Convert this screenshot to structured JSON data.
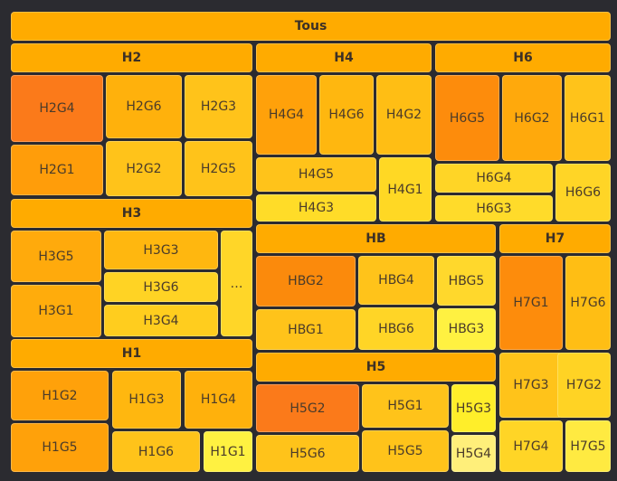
{
  "chart_data": {
    "type": "treemap",
    "root": {
      "name": "Tous",
      "children": [
        {
          "name": "H2",
          "children": [
            {
              "name": "H2G4",
              "color": "#fb7a1a"
            },
            {
              "name": "H2G6",
              "color": "#ffb10c"
            },
            {
              "name": "H2G3",
              "color": "#ffc31a"
            },
            {
              "name": "H2G1",
              "color": "#ff9d0a"
            },
            {
              "name": "H2G2",
              "color": "#ffc31a"
            },
            {
              "name": "H2G5",
              "color": "#ffc31a"
            }
          ]
        },
        {
          "name": "H4",
          "children": [
            {
              "name": "H4G4",
              "color": "#ffa10a"
            },
            {
              "name": "H4G6",
              "color": "#ffb70f"
            },
            {
              "name": "H4G2",
              "color": "#ffbe14"
            },
            {
              "name": "H4G5",
              "color": "#ffc31a"
            },
            {
              "name": "H4G1",
              "color": "#ffd824"
            },
            {
              "name": "H4G3",
              "color": "#ffdc28"
            }
          ]
        },
        {
          "name": "H6",
          "children": [
            {
              "name": "H6G5",
              "color": "#fd8c0c"
            },
            {
              "name": "H6G2",
              "color": "#ffa90c"
            },
            {
              "name": "H6G1",
              "color": "#ffc31a"
            },
            {
              "name": "H6G4",
              "color": "#ffd526"
            },
            {
              "name": "H6G6",
              "color": "#ffd526"
            },
            {
              "name": "H6G3",
              "color": "#ffdb2a"
            }
          ]
        },
        {
          "name": "H3",
          "children": [
            {
              "name": "H3G5",
              "color": "#ffaa0c"
            },
            {
              "name": "H3G3",
              "color": "#ffb70f"
            },
            {
              "name": "H3G6",
              "color": "#ffd324"
            },
            {
              "name": "H3G1",
              "color": "#ffac0c"
            },
            {
              "name": "H3G4",
              "color": "#ffcd1e"
            },
            {
              "name": "…",
              "color": "#ffd628"
            }
          ]
        },
        {
          "name": "HB",
          "children": [
            {
              "name": "HBG2",
              "color": "#fb8a0c"
            },
            {
              "name": "HBG4",
              "color": "#ffc31a"
            },
            {
              "name": "HBG5",
              "color": "#ffd82c"
            },
            {
              "name": "HBG1",
              "color": "#ffc31a"
            },
            {
              "name": "HBG6",
              "color": "#ffd526"
            },
            {
              "name": "HBG3",
              "color": "#fff141"
            }
          ]
        },
        {
          "name": "H7",
          "children": [
            {
              "name": "H7G1",
              "color": "#fd8c0c"
            },
            {
              "name": "H7G6",
              "color": "#ffbe14"
            },
            {
              "name": "H7G3",
              "color": "#ffc31a"
            },
            {
              "name": "H7G2",
              "color": "#ffd324"
            },
            {
              "name": "H7G4",
              "color": "#ffd526"
            },
            {
              "name": "H7G5",
              "color": "#ffea41"
            }
          ]
        },
        {
          "name": "H1",
          "children": [
            {
              "name": "H1G2",
              "color": "#ffa10a"
            },
            {
              "name": "H1G3",
              "color": "#ffb70f"
            },
            {
              "name": "H1G4",
              "color": "#ffb10c"
            },
            {
              "name": "H1G5",
              "color": "#ffa10a"
            },
            {
              "name": "H1G6",
              "color": "#ffc31a"
            },
            {
              "name": "H1G1",
              "color": "#fff141"
            }
          ]
        },
        {
          "name": "H5",
          "children": [
            {
              "name": "H5G2",
              "color": "#fb7a1a"
            },
            {
              "name": "H5G1",
              "color": "#ffc31a"
            },
            {
              "name": "H5G3",
              "color": "#ffee2a"
            },
            {
              "name": "H5G6",
              "color": "#ffc31a"
            },
            {
              "name": "H5G5",
              "color": "#ffc31a"
            },
            {
              "name": "H5G4",
              "color": "#ffef7a"
            }
          ]
        }
      ]
    },
    "header_color": "#ffab00",
    "background": "#2b2b30"
  }
}
